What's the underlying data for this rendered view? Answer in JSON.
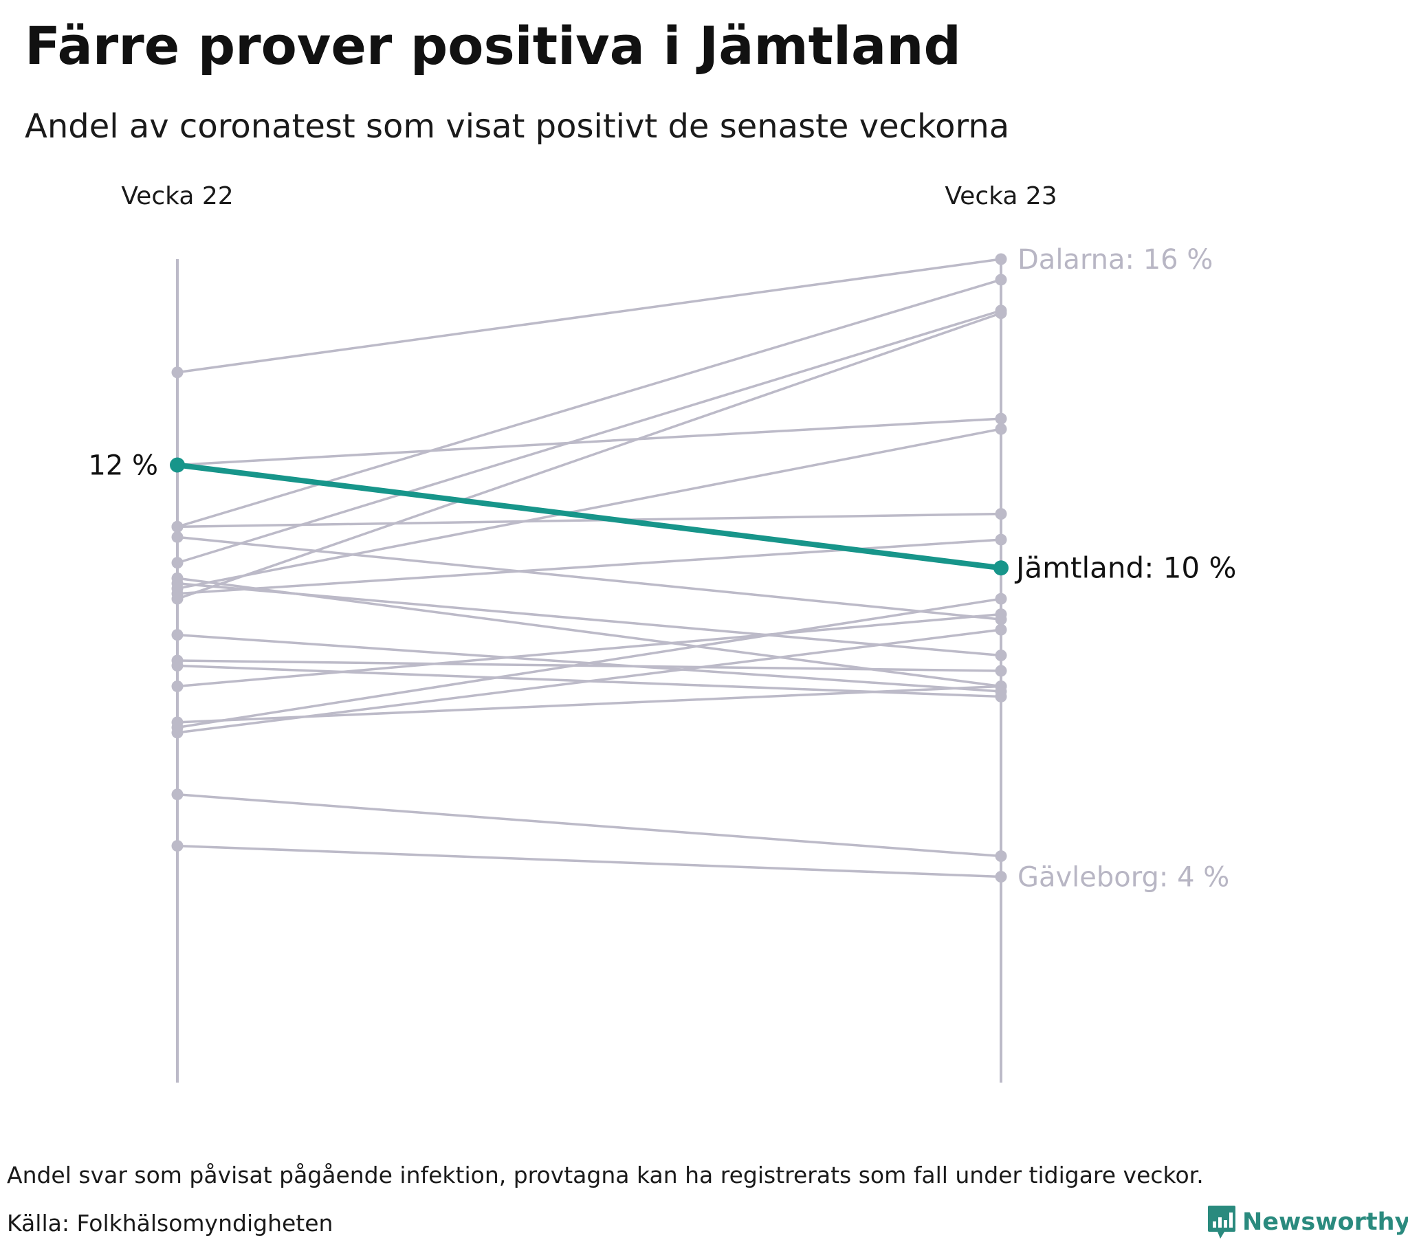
{
  "title": "Färre prover positiva i Jämtland",
  "subtitle": "Andel av coronatest som visat positivt de senaste veckorna",
  "footnote": "Andel svar som påvisat pågående infektion, provtagna kan ha registrerats som fall under tidigare veckor.",
  "source": "Källa: Folkhälsomyndigheten",
  "brand": {
    "name": "Newsworthy",
    "icon": "newsworthy-logo-icon",
    "color": "#2a8a7e"
  },
  "colors": {
    "grey": "#bcbac8",
    "highlight": "#17958a",
    "label_grey": "#b8b6c4",
    "text": "#111111"
  },
  "chart_data": {
    "type": "slope",
    "categories": [
      "Vecka 22",
      "Vecka 23"
    ],
    "ylim": [
      0,
      16
    ],
    "unit": "%",
    "highlight": {
      "name": "Jämtland",
      "values": [
        12,
        10
      ],
      "start_label": "12 %",
      "end_label": "Jämtland: 10 %"
    },
    "annotations": [
      {
        "name": "Dalarna",
        "week": "Vecka 23",
        "value": 16,
        "label": "Dalarna: 16 %"
      },
      {
        "name": "Gävleborg",
        "week": "Vecka 23",
        "value": 4,
        "label": "Gävleborg: 4 %"
      }
    ],
    "series": [
      {
        "values": [
          13.8,
          16.0
        ]
      },
      {
        "values": [
          10.8,
          15.6
        ]
      },
      {
        "values": [
          10.1,
          15.0
        ]
      },
      {
        "values": [
          9.4,
          14.95
        ]
      },
      {
        "values": [
          12.0,
          12.9
        ]
      },
      {
        "values": [
          9.6,
          12.7
        ]
      },
      {
        "values": [
          10.8,
          11.05
        ]
      },
      {
        "values": [
          9.5,
          10.55
        ]
      },
      {
        "values": [
          10.6,
          9.0
        ]
      },
      {
        "values": [
          9.7,
          8.3
        ]
      },
      {
        "values": [
          9.8,
          7.7
        ]
      },
      {
        "values": [
          8.7,
          7.6
        ]
      },
      {
        "values": [
          8.2,
          8.0
        ]
      },
      {
        "values": [
          8.1,
          7.5
        ]
      },
      {
        "values": [
          6.9,
          9.4
        ]
      },
      {
        "values": [
          7.7,
          9.1
        ]
      },
      {
        "values": [
          6.8,
          8.8
        ]
      },
      {
        "values": [
          7.0,
          7.7
        ]
      },
      {
        "values": [
          5.6,
          4.4
        ]
      },
      {
        "values": [
          4.6,
          4.0
        ]
      }
    ]
  }
}
